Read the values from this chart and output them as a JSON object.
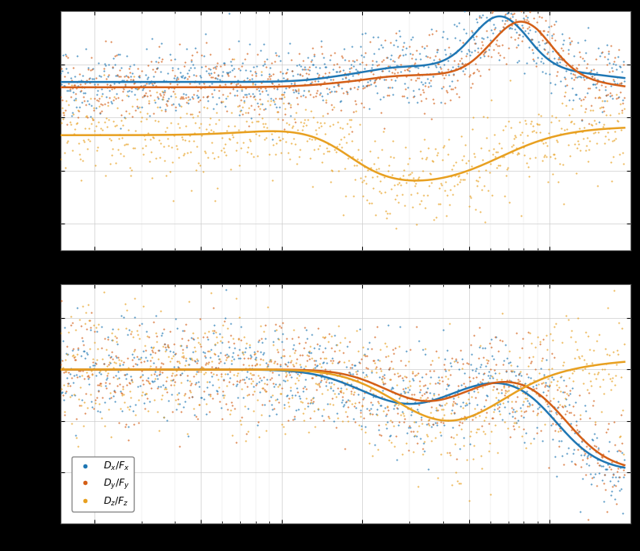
{
  "colors": {
    "blue": "#1f77b4",
    "orange": "#d45f17",
    "gold": "#e8a020"
  },
  "legend_labels": [
    "$D_x/F_x$",
    "$D_y/F_y$",
    "$D_z/F_z$"
  ],
  "background": "#ffffff",
  "grid_color": "#cccccc",
  "dot_size": 2.5,
  "line_width": 1.8,
  "fig_bg": "#000000"
}
